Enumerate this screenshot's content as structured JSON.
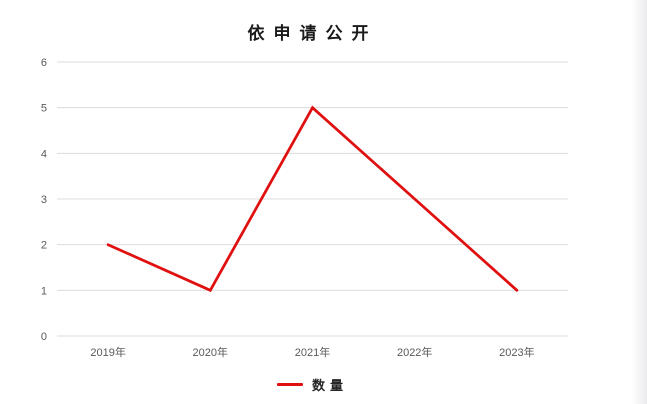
{
  "window": {
    "background": "#ffffff"
  },
  "chart_data": {
    "type": "line",
    "title": "依申请公开",
    "categories": [
      "2019年",
      "2020年",
      "2021年",
      "2022年",
      "2023年"
    ],
    "series": [
      {
        "name": "数量",
        "values": [
          2,
          1,
          5,
          3,
          1
        ],
        "color": "#e01010"
      }
    ],
    "xlabel": "",
    "ylabel": "",
    "ylim": [
      0,
      6
    ],
    "yticks": [
      0,
      1,
      2,
      3,
      4,
      5,
      6
    ],
    "grid": "horizontal",
    "legend_position": "bottom",
    "colors": {
      "line": "#e01010",
      "gridline": "#dcdcdc",
      "axis_label": "#595959",
      "title_text": "#1a1a1a",
      "legend_text": "#262626"
    }
  }
}
